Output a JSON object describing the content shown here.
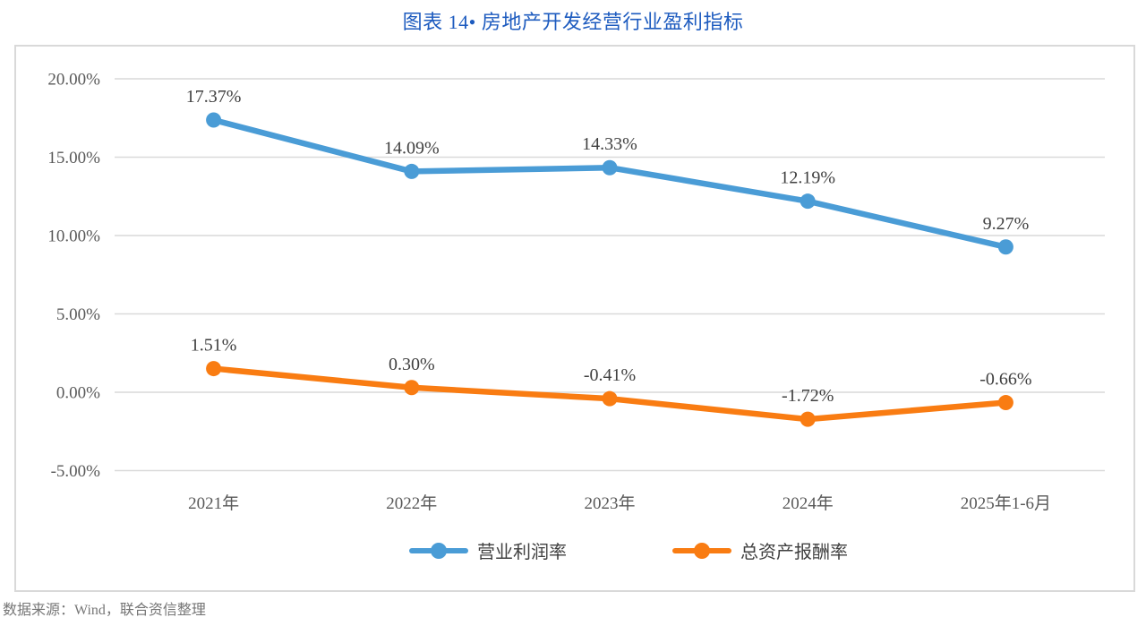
{
  "title": "图表 14• 房地产开发经营行业盈利指标",
  "footer": {
    "source_text": "数据来源：Wind，联合资信整理"
  },
  "colors": {
    "title_blue": "#1D5BBF",
    "series_blue": "#4A9CD6",
    "series_orange": "#F97C12",
    "grid": "#D9D9D9",
    "border": "#D9D9D9",
    "tick_text": "#595959",
    "data_label_text": "#404040",
    "footer_text": "#767676"
  },
  "chart_data": {
    "type": "line",
    "title": "图表 14• 房地产开发经营行业盈利指标",
    "categories": [
      "2021年",
      "2022年",
      "2023年",
      "2024年",
      "2025年1-6月"
    ],
    "series": [
      {
        "name": "营业利润率",
        "color": "#4A9CD6",
        "values": [
          17.37,
          14.09,
          14.33,
          12.19,
          9.27
        ],
        "labels": [
          "17.37%",
          "14.09%",
          "14.33%",
          "12.19%",
          "9.27%"
        ]
      },
      {
        "name": "总资产报酬率",
        "color": "#F97C12",
        "values": [
          1.51,
          0.3,
          -0.41,
          -1.72,
          -0.66
        ],
        "labels": [
          "1.51%",
          "0.30%",
          "-0.41%",
          "-1.72%",
          "-0.66%"
        ]
      }
    ],
    "ylim": [
      -5,
      20
    ],
    "yticks": [
      {
        "value": 20,
        "label": "20.00%"
      },
      {
        "value": 15,
        "label": "15.00%"
      },
      {
        "value": 10,
        "label": "10.00%"
      },
      {
        "value": 5,
        "label": "5.00%"
      },
      {
        "value": 0,
        "label": "0.00%"
      },
      {
        "value": -5,
        "label": "-5.00%"
      }
    ],
    "grid": true,
    "legend_position": "bottom",
    "data_labels": true
  }
}
